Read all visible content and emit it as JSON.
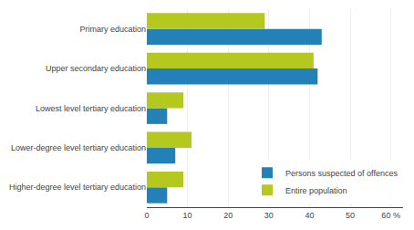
{
  "chart_data": {
    "type": "bar",
    "orientation": "horizontal",
    "categories": [
      "Higher-degree level tertiary education",
      "Lower-degree level tertiary education",
      "Lowest level tertiary education",
      "Upper secondary education",
      "Primary education"
    ],
    "series": [
      {
        "name": "Persons suspected of offences",
        "color": "#2381b8",
        "values": [
          5,
          7,
          5,
          42,
          43
        ]
      },
      {
        "name": "Entire population",
        "color": "#b5c820",
        "values": [
          9,
          11,
          9,
          41,
          29
        ]
      }
    ],
    "xlim": [
      0,
      63
    ],
    "xticks": [
      0,
      10,
      20,
      30,
      40,
      50,
      {
        "value": 60,
        "label": "60 %"
      }
    ],
    "grid": true,
    "legend": "lower right"
  }
}
